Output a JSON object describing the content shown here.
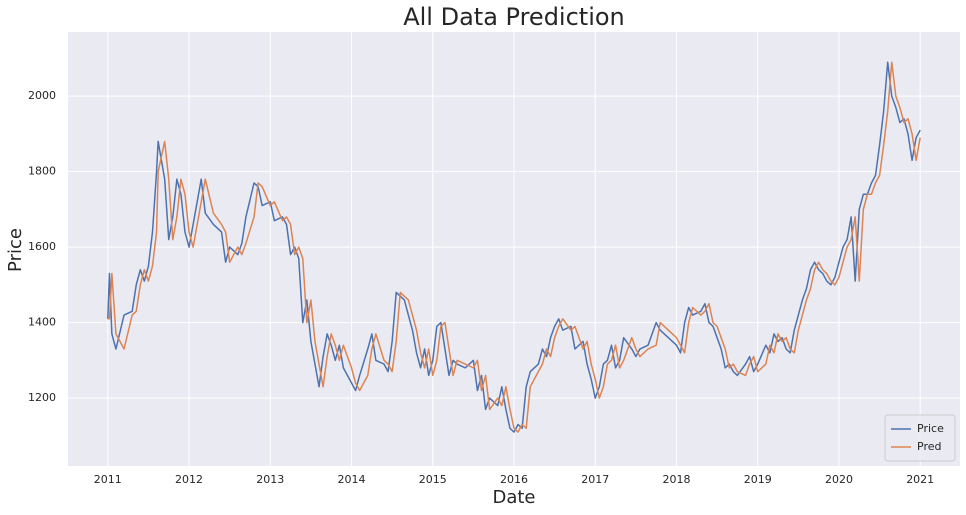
{
  "chart_data": {
    "type": "line",
    "title": "All Data Prediction",
    "x_label": "Date",
    "y_label": "Price",
    "x": [
      2011.0,
      2011.02,
      2011.05,
      2011.1,
      2011.2,
      2011.3,
      2011.35,
      2011.4,
      2011.45,
      2011.5,
      2011.55,
      2011.6,
      2011.62,
      2011.7,
      2011.75,
      2011.8,
      2011.85,
      2011.9,
      2011.95,
      2012.0,
      2012.05,
      2012.1,
      2012.15,
      2012.2,
      2012.3,
      2012.4,
      2012.45,
      2012.5,
      2012.6,
      2012.65,
      2012.7,
      2012.8,
      2012.85,
      2012.9,
      2013.0,
      2013.05,
      2013.15,
      2013.2,
      2013.25,
      2013.3,
      2013.35,
      2013.4,
      2013.45,
      2013.5,
      2013.55,
      2013.6,
      2013.65,
      2013.7,
      2013.75,
      2013.8,
      2013.85,
      2013.9,
      2014.0,
      2014.05,
      2014.1,
      2014.2,
      2014.25,
      2014.3,
      2014.4,
      2014.45,
      2014.5,
      2014.55,
      2014.6,
      2014.65,
      2014.7,
      2014.75,
      2014.8,
      2014.85,
      2014.9,
      2014.95,
      2015.0,
      2015.05,
      2015.1,
      2015.15,
      2015.2,
      2015.25,
      2015.3,
      2015.4,
      2015.5,
      2015.55,
      2015.6,
      2015.65,
      2015.7,
      2015.8,
      2015.85,
      2015.9,
      2015.95,
      2016.0,
      2016.05,
      2016.1,
      2016.15,
      2016.2,
      2016.3,
      2016.35,
      2016.4,
      2016.45,
      2016.5,
      2016.55,
      2016.6,
      2016.7,
      2016.75,
      2016.85,
      2016.9,
      2016.95,
      2017.0,
      2017.05,
      2017.1,
      2017.15,
      2017.2,
      2017.25,
      2017.3,
      2017.35,
      2017.45,
      2017.5,
      2017.55,
      2017.65,
      2017.75,
      2017.8,
      2017.9,
      2018.0,
      2018.05,
      2018.1,
      2018.15,
      2018.2,
      2018.3,
      2018.35,
      2018.4,
      2018.45,
      2018.5,
      2018.55,
      2018.6,
      2018.65,
      2018.7,
      2018.75,
      2018.85,
      2018.9,
      2018.95,
      2019.0,
      2019.1,
      2019.15,
      2019.2,
      2019.25,
      2019.3,
      2019.35,
      2019.4,
      2019.45,
      2019.5,
      2019.55,
      2019.6,
      2019.65,
      2019.7,
      2019.75,
      2019.8,
      2019.85,
      2019.9,
      2019.95,
      2020.0,
      2020.05,
      2020.1,
      2020.15,
      2020.2,
      2020.25,
      2020.3,
      2020.35,
      2020.4,
      2020.45,
      2020.5,
      2020.55,
      2020.6,
      2020.65,
      2020.7,
      2020.75,
      2020.8,
      2020.85,
      2020.9,
      2020.95,
      2021.0
    ],
    "series": [
      {
        "name": "Price",
        "color": "#4c72b0",
        "values": [
          1410,
          1530,
          1370,
          1330,
          1420,
          1430,
          1500,
          1540,
          1510,
          1550,
          1640,
          1800,
          1880,
          1780,
          1620,
          1680,
          1780,
          1740,
          1640,
          1600,
          1660,
          1720,
          1780,
          1690,
          1660,
          1640,
          1560,
          1600,
          1580,
          1610,
          1680,
          1770,
          1760,
          1710,
          1720,
          1670,
          1680,
          1660,
          1580,
          1600,
          1570,
          1400,
          1460,
          1350,
          1290,
          1230,
          1310,
          1370,
          1340,
          1300,
          1340,
          1280,
          1240,
          1220,
          1260,
          1330,
          1370,
          1300,
          1290,
          1270,
          1350,
          1480,
          1470,
          1460,
          1420,
          1380,
          1320,
          1280,
          1330,
          1260,
          1300,
          1390,
          1400,
          1330,
          1260,
          1300,
          1290,
          1280,
          1300,
          1220,
          1260,
          1170,
          1200,
          1180,
          1230,
          1170,
          1120,
          1110,
          1130,
          1120,
          1230,
          1270,
          1290,
          1330,
          1310,
          1360,
          1390,
          1410,
          1380,
          1390,
          1330,
          1350,
          1290,
          1250,
          1200,
          1230,
          1290,
          1300,
          1340,
          1280,
          1300,
          1360,
          1330,
          1310,
          1330,
          1340,
          1400,
          1380,
          1360,
          1340,
          1320,
          1400,
          1440,
          1420,
          1430,
          1450,
          1400,
          1390,
          1360,
          1330,
          1280,
          1290,
          1270,
          1260,
          1290,
          1310,
          1270,
          1290,
          1340,
          1320,
          1370,
          1350,
          1360,
          1330,
          1320,
          1380,
          1420,
          1460,
          1490,
          1540,
          1560,
          1540,
          1530,
          1510,
          1500,
          1520,
          1560,
          1600,
          1620,
          1680,
          1510,
          1700,
          1740,
          1740,
          1770,
          1790,
          1870,
          1960,
          2090,
          2000,
          1970,
          1930,
          1940,
          1900,
          1830,
          1890,
          1910
        ]
      },
      {
        "name": "Pred",
        "color": "#dd8452",
        "values": [
          1410,
          1410,
          1530,
          1370,
          1330,
          1420,
          1430,
          1500,
          1540,
          1510,
          1550,
          1640,
          1800,
          1880,
          1780,
          1620,
          1680,
          1780,
          1740,
          1640,
          1600,
          1660,
          1720,
          1780,
          1690,
          1660,
          1640,
          1560,
          1600,
          1580,
          1610,
          1680,
          1770,
          1760,
          1710,
          1720,
          1670,
          1680,
          1660,
          1580,
          1600,
          1570,
          1400,
          1460,
          1350,
          1290,
          1230,
          1310,
          1370,
          1340,
          1300,
          1340,
          1280,
          1240,
          1220,
          1260,
          1330,
          1370,
          1300,
          1290,
          1270,
          1350,
          1480,
          1470,
          1460,
          1420,
          1380,
          1320,
          1280,
          1330,
          1260,
          1300,
          1390,
          1400,
          1330,
          1260,
          1300,
          1290,
          1280,
          1300,
          1220,
          1260,
          1170,
          1200,
          1180,
          1230,
          1170,
          1120,
          1110,
          1130,
          1120,
          1230,
          1270,
          1290,
          1330,
          1310,
          1360,
          1390,
          1410,
          1380,
          1390,
          1330,
          1350,
          1290,
          1250,
          1200,
          1230,
          1290,
          1300,
          1340,
          1280,
          1300,
          1360,
          1330,
          1310,
          1330,
          1340,
          1400,
          1380,
          1360,
          1340,
          1320,
          1400,
          1440,
          1420,
          1430,
          1450,
          1400,
          1390,
          1360,
          1330,
          1280,
          1290,
          1270,
          1260,
          1290,
          1310,
          1270,
          1290,
          1340,
          1320,
          1370,
          1350,
          1360,
          1330,
          1320,
          1380,
          1420,
          1460,
          1490,
          1540,
          1560,
          1540,
          1530,
          1510,
          1500,
          1520,
          1560,
          1600,
          1620,
          1680,
          1510,
          1700,
          1740,
          1740,
          1770,
          1790,
          1870,
          1960,
          2090,
          2000,
          1970,
          1930,
          1940,
          1900,
          1830,
          1890
        ]
      }
    ],
    "xlim": [
      2010.51,
      2021.49
    ],
    "xticks": [
      2011,
      2012,
      2013,
      2014,
      2015,
      2016,
      2017,
      2018,
      2019,
      2020,
      2021
    ],
    "ylim": [
      1020,
      2170
    ],
    "yticks": [
      1200,
      1400,
      1600,
      1800,
      2000
    ],
    "grid": true,
    "legend": "lower right"
  }
}
